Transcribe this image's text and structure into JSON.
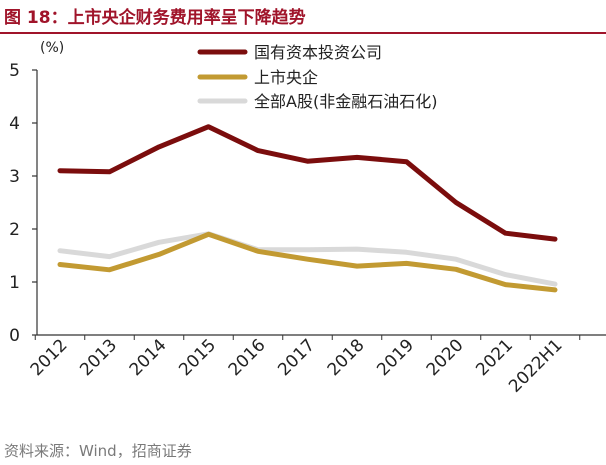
{
  "title": "图 18：上市央企财务费用率呈下降趋势",
  "source": "资料来源：Wind，招商证券",
  "chart_data": {
    "type": "line",
    "title": "图 18：上市央企财务费用率呈下降趋势",
    "ylabel": "(%)",
    "xlabel": "",
    "categories": [
      "2012",
      "2013",
      "2014",
      "2015",
      "2016",
      "2017",
      "2018",
      "2019",
      "2020",
      "2021",
      "2022H1"
    ],
    "ylim": [
      0,
      5
    ],
    "yticks": [
      0,
      1,
      2,
      3,
      4,
      5
    ],
    "grid": false,
    "legend_position": "top-right",
    "series": [
      {
        "name": "国有资本投资公司",
        "color": "#7b0d0d",
        "values": [
          3.1,
          3.08,
          3.55,
          3.93,
          3.48,
          3.28,
          3.35,
          3.27,
          2.5,
          1.92,
          1.81
        ]
      },
      {
        "name": "上市央企",
        "color": "#c29a32",
        "values": [
          1.33,
          1.23,
          1.52,
          1.9,
          1.58,
          1.43,
          1.3,
          1.35,
          1.24,
          0.95,
          0.85
        ]
      },
      {
        "name": "全部A股(非金融石油石化)",
        "color": "#d9d9d9",
        "values": [
          1.59,
          1.48,
          1.75,
          1.91,
          1.61,
          1.61,
          1.62,
          1.56,
          1.43,
          1.14,
          0.96
        ]
      }
    ]
  }
}
